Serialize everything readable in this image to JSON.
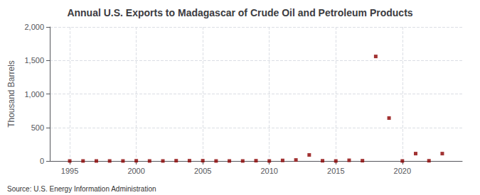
{
  "chart_data": {
    "type": "scatter",
    "title": "Annual U.S. Exports to Madagascar of Crude Oil and Petroleum Products",
    "ylabel": "Thousand Barrels",
    "annotations": [
      "Source: U.S. Energy Information Administration"
    ],
    "x": [
      1995,
      1996,
      1997,
      1998,
      1999,
      2000,
      2001,
      2002,
      2003,
      2004,
      2005,
      2006,
      2007,
      2008,
      2009,
      2010,
      2011,
      2012,
      2013,
      2014,
      2015,
      2016,
      2017,
      2018,
      2019,
      2020,
      2021,
      2022,
      2023
    ],
    "values": [
      0,
      0,
      0,
      0,
      0,
      3,
      0,
      0,
      4,
      4,
      4,
      0,
      0,
      0,
      4,
      0,
      8,
      15,
      90,
      3,
      0,
      10,
      4,
      1560,
      640,
      0,
      110,
      3,
      110
    ],
    "color": "#8b0000",
    "marker": "square",
    "xlim": [
      1993.5,
      2024.5
    ],
    "xticks": [
      1995,
      2000,
      2005,
      2010,
      2015,
      2020
    ],
    "ylim": [
      0,
      2000
    ],
    "yticks": [
      0,
      500,
      {
        "value": 1000,
        "label": "1,000"
      },
      {
        "value": 1500,
        "label": "1,500"
      },
      {
        "value": 2000,
        "label": "2,000"
      }
    ],
    "grid": true
  }
}
